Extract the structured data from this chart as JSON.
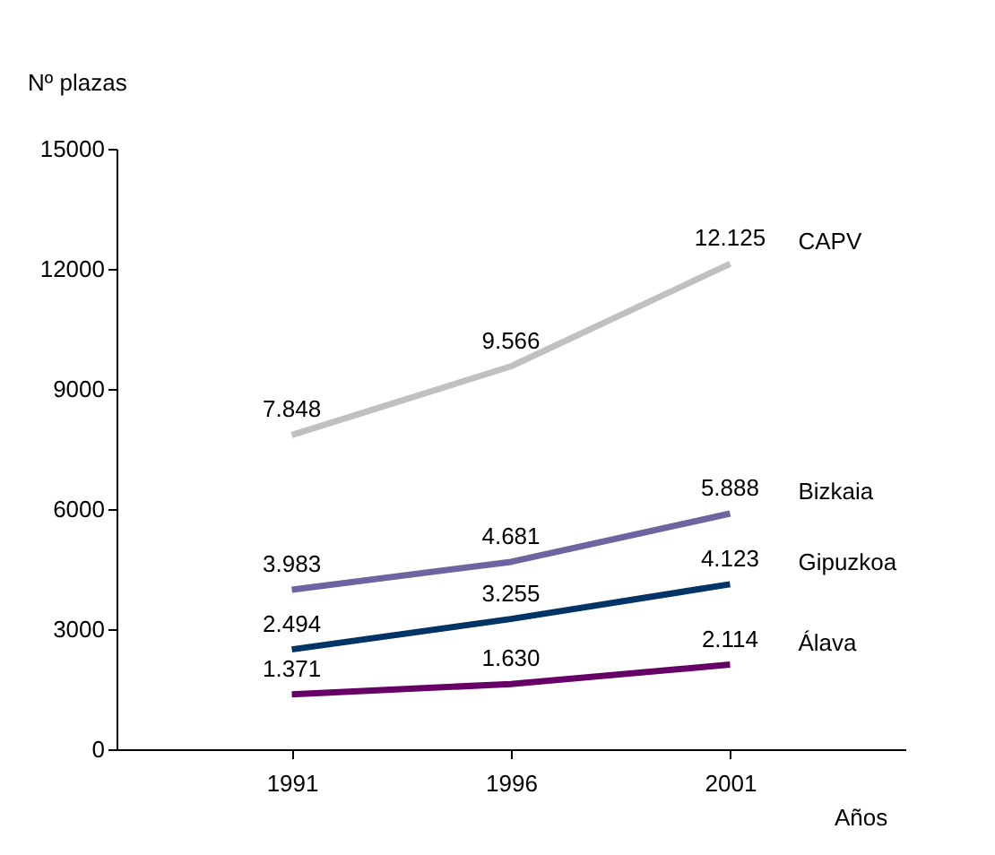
{
  "chart_data": {
    "type": "line",
    "xlabel": "Años",
    "ylabel": "Nº plazas",
    "categories": [
      "1991",
      "1996",
      "2001"
    ],
    "ylim": [
      0,
      15000
    ],
    "yticks": [
      0,
      3000,
      6000,
      9000,
      12000,
      15000
    ],
    "grid": false,
    "legend": false,
    "series": [
      {
        "name": "CAPV",
        "color": "#c0c0c0",
        "values": [
          7848,
          9566,
          12125
        ],
        "value_labels": [
          "7.848",
          "9.566",
          "12.125"
        ]
      },
      {
        "name": "Bizkaia",
        "color": "#6f63a0",
        "values": [
          3983,
          4681,
          5888
        ],
        "value_labels": [
          "3.983",
          "4.681",
          "5.888"
        ]
      },
      {
        "name": "Gipuzkoa",
        "color": "#003366",
        "values": [
          2494,
          3255,
          4123
        ],
        "value_labels": [
          "2.494",
          "3.255",
          "4.123"
        ]
      },
      {
        "name": "Álava",
        "color": "#660066",
        "values": [
          1371,
          1630,
          2114
        ],
        "value_labels": [
          "1.371",
          "1.630",
          "2.114"
        ]
      }
    ]
  }
}
